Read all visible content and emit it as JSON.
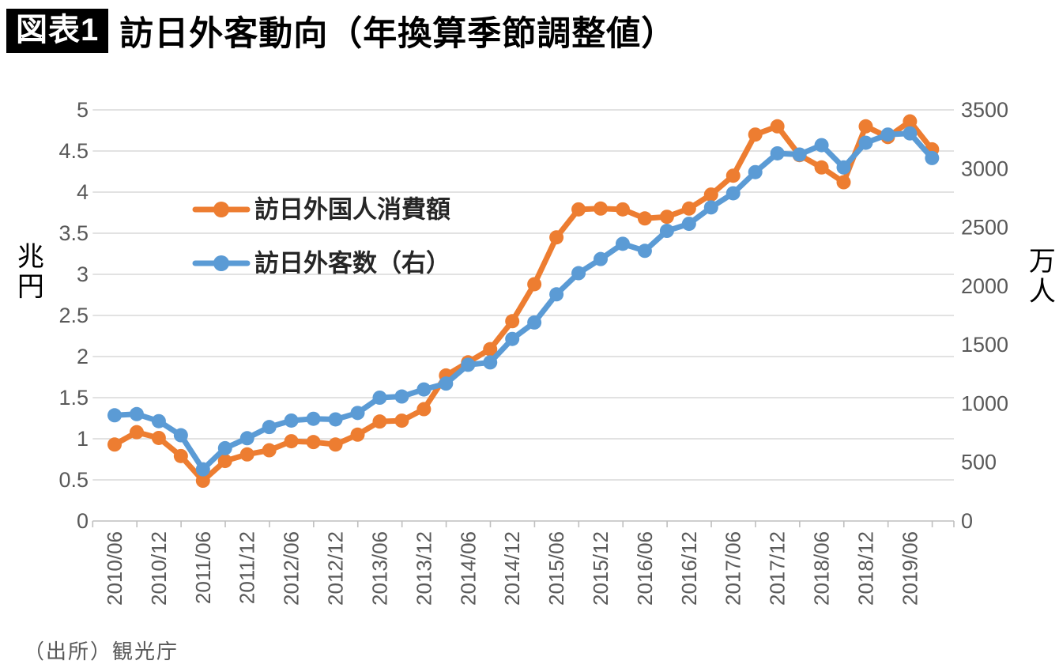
{
  "header": {
    "badge": "図表1",
    "title": "訪日外客動向（年換算季節調整値）"
  },
  "source_note": "（出所）観光庁",
  "colors": {
    "consumption_line": "#ED7D31",
    "visitors_line": "#5B9BD5",
    "gridline": "#D9D9D9",
    "axis_line": "#BFBFBF",
    "tick_text": "#595959",
    "legend_text": "#262626"
  },
  "chart_data": {
    "type": "line",
    "title": "訪日外客動向（年換算季節調整値）",
    "grid": "horizontal",
    "legend_position": "inside-top-left",
    "x": [
      "2010/06",
      "2010/09",
      "2010/12",
      "2011/03",
      "2011/06",
      "2011/09",
      "2011/12",
      "2012/03",
      "2012/06",
      "2012/09",
      "2012/12",
      "2013/03",
      "2013/06",
      "2013/09",
      "2013/12",
      "2014/03",
      "2014/06",
      "2014/09",
      "2014/12",
      "2015/03",
      "2015/06",
      "2015/09",
      "2015/12",
      "2016/03",
      "2016/06",
      "2016/09",
      "2016/12",
      "2017/03",
      "2017/06",
      "2017/09",
      "2017/12",
      "2018/03",
      "2018/06",
      "2018/09",
      "2018/12",
      "2019/03",
      "2019/06",
      "2019/09"
    ],
    "x_tick_labels": [
      "2010/06",
      "2010/12",
      "2011/06",
      "2011/12",
      "2012/06",
      "2012/12",
      "2013/06",
      "2013/12",
      "2014/06",
      "2014/12",
      "2015/06",
      "2015/12",
      "2016/06",
      "2016/12",
      "2017/06",
      "2017/12",
      "2018/06",
      "2018/12",
      "2019/06"
    ],
    "series": [
      {
        "name": "訪日外国人消費額",
        "axis": "left",
        "unit": "兆円",
        "color": "#ED7D31",
        "values": [
          0.93,
          1.08,
          1.01,
          0.79,
          0.49,
          0.73,
          0.81,
          0.86,
          0.97,
          0.96,
          0.93,
          1.05,
          1.21,
          1.22,
          1.36,
          1.77,
          1.93,
          2.09,
          2.43,
          2.88,
          3.45,
          3.79,
          3.8,
          3.79,
          3.68,
          3.7,
          3.8,
          3.97,
          4.2,
          4.7,
          4.8,
          4.45,
          4.3,
          4.12,
          4.8,
          4.67,
          4.86,
          4.52
        ]
      },
      {
        "name": "訪日外客数（右）",
        "axis": "right",
        "unit": "万人",
        "color": "#5B9BD5",
        "values": [
          900,
          910,
          850,
          730,
          440,
          620,
          705,
          800,
          855,
          870,
          865,
          920,
          1050,
          1060,
          1120,
          1170,
          1330,
          1350,
          1550,
          1690,
          1930,
          2110,
          2230,
          2360,
          2300,
          2470,
          2530,
          2670,
          2790,
          2970,
          3130,
          3120,
          3200,
          3010,
          3220,
          3290,
          3300,
          3090
        ]
      }
    ],
    "left_axis": {
      "label": "兆円",
      "min": 0,
      "max": 5,
      "tick_step": 0.5
    },
    "right_axis": {
      "label": "万人",
      "min": 0,
      "max": 3500,
      "tick_step": 500
    },
    "legend": [
      {
        "label": "訪日外国人消費額",
        "color": "#ED7D31"
      },
      {
        "label": "訪日外客数（右）",
        "color": "#5B9BD5"
      }
    ]
  }
}
